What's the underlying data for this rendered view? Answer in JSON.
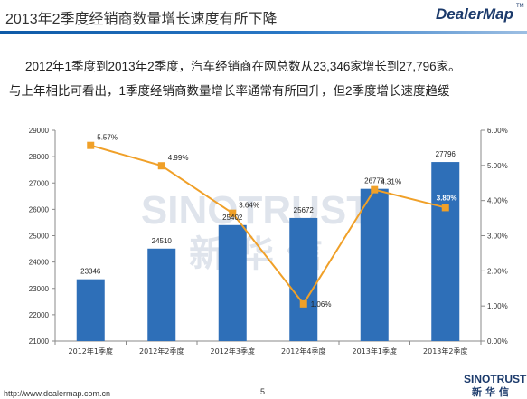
{
  "header": {
    "title": "2013年2季度经销商数量增长速度有所下降",
    "logo": "DealerMap",
    "logo_tm": "TM"
  },
  "description": {
    "line1": "2012年1季度到2013年2季度，汽车经销商在网总数从23,346家增长到27,796家。",
    "line2": "与上年相比可看出，1季度经销商数量增长率通常有所回升，但2季度增长速度趋缓"
  },
  "watermark": {
    "en": "SINOTRUST",
    "cn": "新 华 信"
  },
  "colors": {
    "bar": "#2e6fb8",
    "line": "#f0a028",
    "marker": "#f0a028",
    "title_blue": "#1b3a6b"
  },
  "chart_data": {
    "type": "bar",
    "categories": [
      "2012年1季度",
      "2012年2季度",
      "2012年3季度",
      "2012年4季度",
      "2013年1季度",
      "2013年2季度"
    ],
    "values": [
      23346,
      24510,
      25402,
      25672,
      26779,
      27796
    ],
    "value_labels": [
      "23346",
      "24510",
      "25402",
      "25672",
      "26779",
      "27796"
    ],
    "ylim": [
      21000,
      29000
    ],
    "yticks": [
      21000,
      22000,
      23000,
      24000,
      25000,
      26000,
      27000,
      28000,
      29000
    ],
    "ytick_labels": [
      "21000",
      "22000",
      "23000",
      "24000",
      "25000",
      "26000",
      "27000",
      "28000",
      "29000"
    ],
    "secondary": {
      "type": "line",
      "values": [
        5.57,
        4.99,
        3.64,
        1.06,
        4.31,
        3.8
      ],
      "value_labels": [
        "5.57%",
        "4.99%",
        "3.64%",
        "1.06%",
        "4.31%",
        "3.80%"
      ],
      "ylim": [
        0,
        6
      ],
      "yticks": [
        0,
        1,
        2,
        3,
        4,
        5,
        6
      ],
      "ytick_labels": [
        "0.00%",
        "1.00%",
        "2.00%",
        "3.00%",
        "4.00%",
        "5.00%",
        "6.00%"
      ]
    },
    "title": "",
    "xlabel": "",
    "ylabel": "",
    "grid": false,
    "legend": "none"
  },
  "footer": {
    "url": "http://www.dealermap.com.cn",
    "page": "5",
    "brand_en": "SINOTRUST",
    "brand_cn": "新华信"
  }
}
